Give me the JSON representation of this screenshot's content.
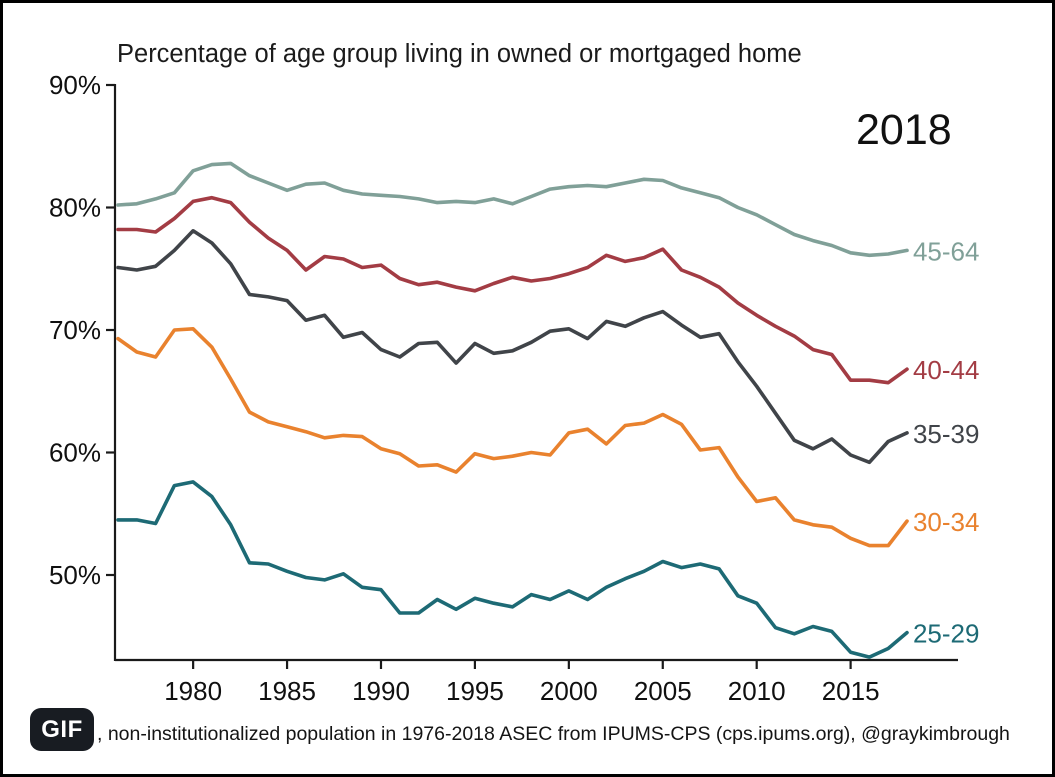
{
  "frame": {
    "border_color": "#000000",
    "background": "#ffffff"
  },
  "title": "Percentage of age group living in owned or mortgaged home",
  "annotation_year": "2018",
  "gif_badge_label": "GIF",
  "caption": ", non-institutionalized population in 1976-2018 ASEC from IPUMS-CPS (cps.ipums.org), @graykimbrough",
  "chart_data": {
    "type": "line",
    "title": "Percentage of age group living in owned or mortgaged home",
    "annotation": "2018",
    "grid": false,
    "legend_position": "right-end-labels",
    "xlim": [
      1975.8,
      2020.8
    ],
    "ylim": [
      43.1,
      90
    ],
    "y_ticks": [
      90,
      80,
      70,
      60,
      50
    ],
    "y_tick_labels": [
      "90%",
      "80%",
      "70%",
      "60%",
      "50%"
    ],
    "x_ticks": [
      1980,
      1985,
      1990,
      1995,
      2000,
      2005,
      2010,
      2015
    ],
    "x_tick_labels": [
      "1980",
      "1985",
      "1990",
      "1995",
      "2000",
      "2005",
      "2010",
      "2015"
    ],
    "x": [
      1976,
      1977,
      1978,
      1979,
      1980,
      1981,
      1982,
      1983,
      1984,
      1985,
      1986,
      1987,
      1988,
      1989,
      1990,
      1991,
      1992,
      1993,
      1994,
      1995,
      1996,
      1997,
      1998,
      1999,
      2000,
      2001,
      2002,
      2003,
      2004,
      2005,
      2006,
      2007,
      2008,
      2009,
      2010,
      2011,
      2012,
      2013,
      2014,
      2015,
      2016,
      2017,
      2018
    ],
    "series": [
      {
        "name": "45-64",
        "color": "#80a098",
        "values": [
          80.2,
          80.3,
          80.7,
          81.2,
          83.0,
          83.5,
          83.6,
          82.6,
          82.0,
          81.4,
          81.9,
          82.0,
          81.4,
          81.1,
          81.0,
          80.9,
          80.7,
          80.4,
          80.5,
          80.4,
          80.7,
          80.3,
          80.9,
          81.5,
          81.7,
          81.8,
          81.7,
          82.0,
          82.3,
          82.2,
          81.6,
          81.2,
          80.8,
          80.0,
          79.4,
          78.6,
          77.8,
          77.3,
          76.9,
          76.3,
          76.1,
          76.2,
          76.5
        ]
      },
      {
        "name": "40-44",
        "color": "#a33c44",
        "values": [
          78.2,
          78.2,
          78.0,
          79.1,
          80.5,
          80.8,
          80.4,
          78.8,
          77.5,
          76.5,
          74.9,
          76.0,
          75.8,
          75.1,
          75.3,
          74.2,
          73.7,
          73.9,
          73.5,
          73.2,
          73.8,
          74.3,
          74.0,
          74.2,
          74.6,
          75.1,
          76.1,
          75.6,
          75.9,
          76.6,
          74.9,
          74.3,
          73.5,
          72.2,
          71.2,
          70.3,
          69.5,
          68.4,
          68.0,
          65.9,
          65.9,
          65.7,
          66.8
        ]
      },
      {
        "name": "35-39",
        "color": "#404449",
        "values": [
          75.1,
          74.9,
          75.2,
          76.5,
          78.1,
          77.1,
          75.4,
          72.9,
          72.7,
          72.4,
          70.8,
          71.2,
          69.4,
          69.8,
          68.4,
          67.8,
          68.9,
          69.0,
          67.3,
          68.9,
          68.1,
          68.3,
          69.0,
          69.9,
          70.1,
          69.3,
          70.7,
          70.3,
          71.0,
          71.5,
          70.4,
          69.4,
          69.7,
          67.4,
          65.4,
          63.2,
          61.0,
          60.3,
          61.1,
          59.8,
          59.2,
          60.9,
          61.6
        ]
      },
      {
        "name": "30-34",
        "color": "#e9822e",
        "values": [
          69.3,
          68.2,
          67.8,
          70.0,
          70.1,
          68.6,
          66.0,
          63.3,
          62.5,
          62.1,
          61.7,
          61.2,
          61.4,
          61.3,
          60.3,
          59.9,
          58.9,
          59.0,
          58.4,
          59.9,
          59.5,
          59.7,
          60.0,
          59.8,
          61.6,
          61.9,
          60.7,
          62.2,
          62.4,
          63.1,
          62.3,
          60.2,
          60.4,
          58.0,
          56.0,
          56.3,
          54.5,
          54.1,
          53.9,
          53.0,
          52.4,
          52.4,
          54.4
        ]
      },
      {
        "name": "25-29",
        "color": "#1d6a75",
        "values": [
          54.5,
          54.5,
          54.2,
          57.3,
          57.6,
          56.4,
          54.1,
          51.0,
          50.9,
          50.3,
          49.8,
          49.6,
          50.1,
          49.0,
          48.8,
          46.9,
          46.9,
          48.0,
          47.2,
          48.1,
          47.7,
          47.4,
          48.4,
          48.0,
          48.7,
          48.0,
          49.0,
          49.7,
          50.3,
          51.1,
          50.6,
          50.9,
          50.5,
          48.3,
          47.7,
          45.7,
          45.2,
          45.8,
          45.4,
          43.7,
          43.3,
          44.0,
          45.3
        ]
      }
    ]
  }
}
